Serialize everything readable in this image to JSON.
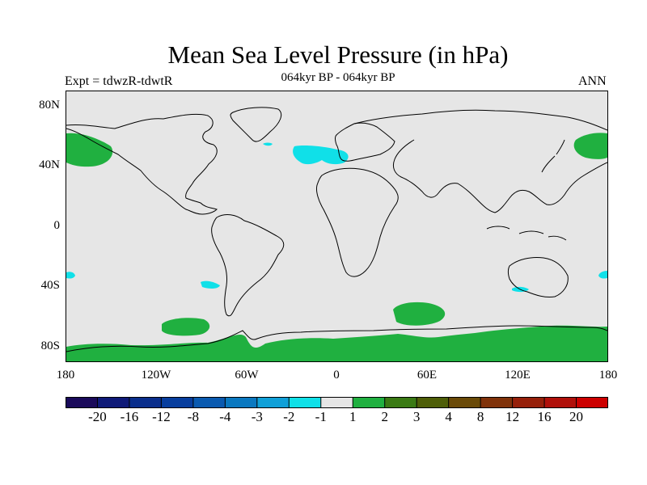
{
  "title": "Mean Sea Level Pressure (in hPa)",
  "subtitle_left": "Expt = tdwzR-tdwtR",
  "subtitle_center": "064kyr BP - 064kyr BP",
  "subtitle_right": "ANN",
  "lat_labels": [
    "80N",
    "40N",
    "0",
    "40S",
    "80S"
  ],
  "lon_labels": [
    "180",
    "120W",
    "60W",
    "0",
    "60E",
    "120E",
    "180"
  ],
  "colorbar": {
    "labels": [
      "-20",
      "-16",
      "-12",
      "-8",
      "-4",
      "-3",
      "-2",
      "-1",
      "1",
      "2",
      "3",
      "4",
      "8",
      "12",
      "16",
      "20"
    ],
    "colors": [
      "#1a0a5a",
      "#0f1a78",
      "#0a2e8c",
      "#083e9e",
      "#0a5ab0",
      "#0a78c0",
      "#10a0d8",
      "#10e0e8",
      "#e6e6e6",
      "#20b040",
      "#3a7a14",
      "#4e5e08",
      "#6a4a08",
      "#80320a",
      "#96200a",
      "#b0100a",
      "#cc0000"
    ]
  },
  "map": {
    "land_fill": "#e6e6e6",
    "anomaly_regions": [
      {
        "id": "north-pacific-west",
        "category": "2",
        "color": "#20b040"
      },
      {
        "id": "north-pacific-east",
        "category": "2",
        "color": "#20b040"
      },
      {
        "id": "south-pacific",
        "category": "2",
        "color": "#20b040"
      },
      {
        "id": "south-indian",
        "category": "2",
        "color": "#20b040"
      },
      {
        "id": "antarctica-band",
        "category": "2",
        "color": "#20b040"
      },
      {
        "id": "north-atlantic",
        "category": "-1",
        "color": "#10e0e8"
      },
      {
        "id": "greenland-small",
        "category": "-1",
        "color": "#10e0e8"
      },
      {
        "id": "south-atlantic-small",
        "category": "-1",
        "color": "#10e0e8"
      },
      {
        "id": "australia-small",
        "category": "-1",
        "color": "#10e0e8"
      },
      {
        "id": "pacific-west-edge",
        "category": "-1",
        "color": "#10e0e8"
      },
      {
        "id": "pacific-east-edge",
        "category": "-1",
        "color": "#10e0e8"
      }
    ]
  }
}
